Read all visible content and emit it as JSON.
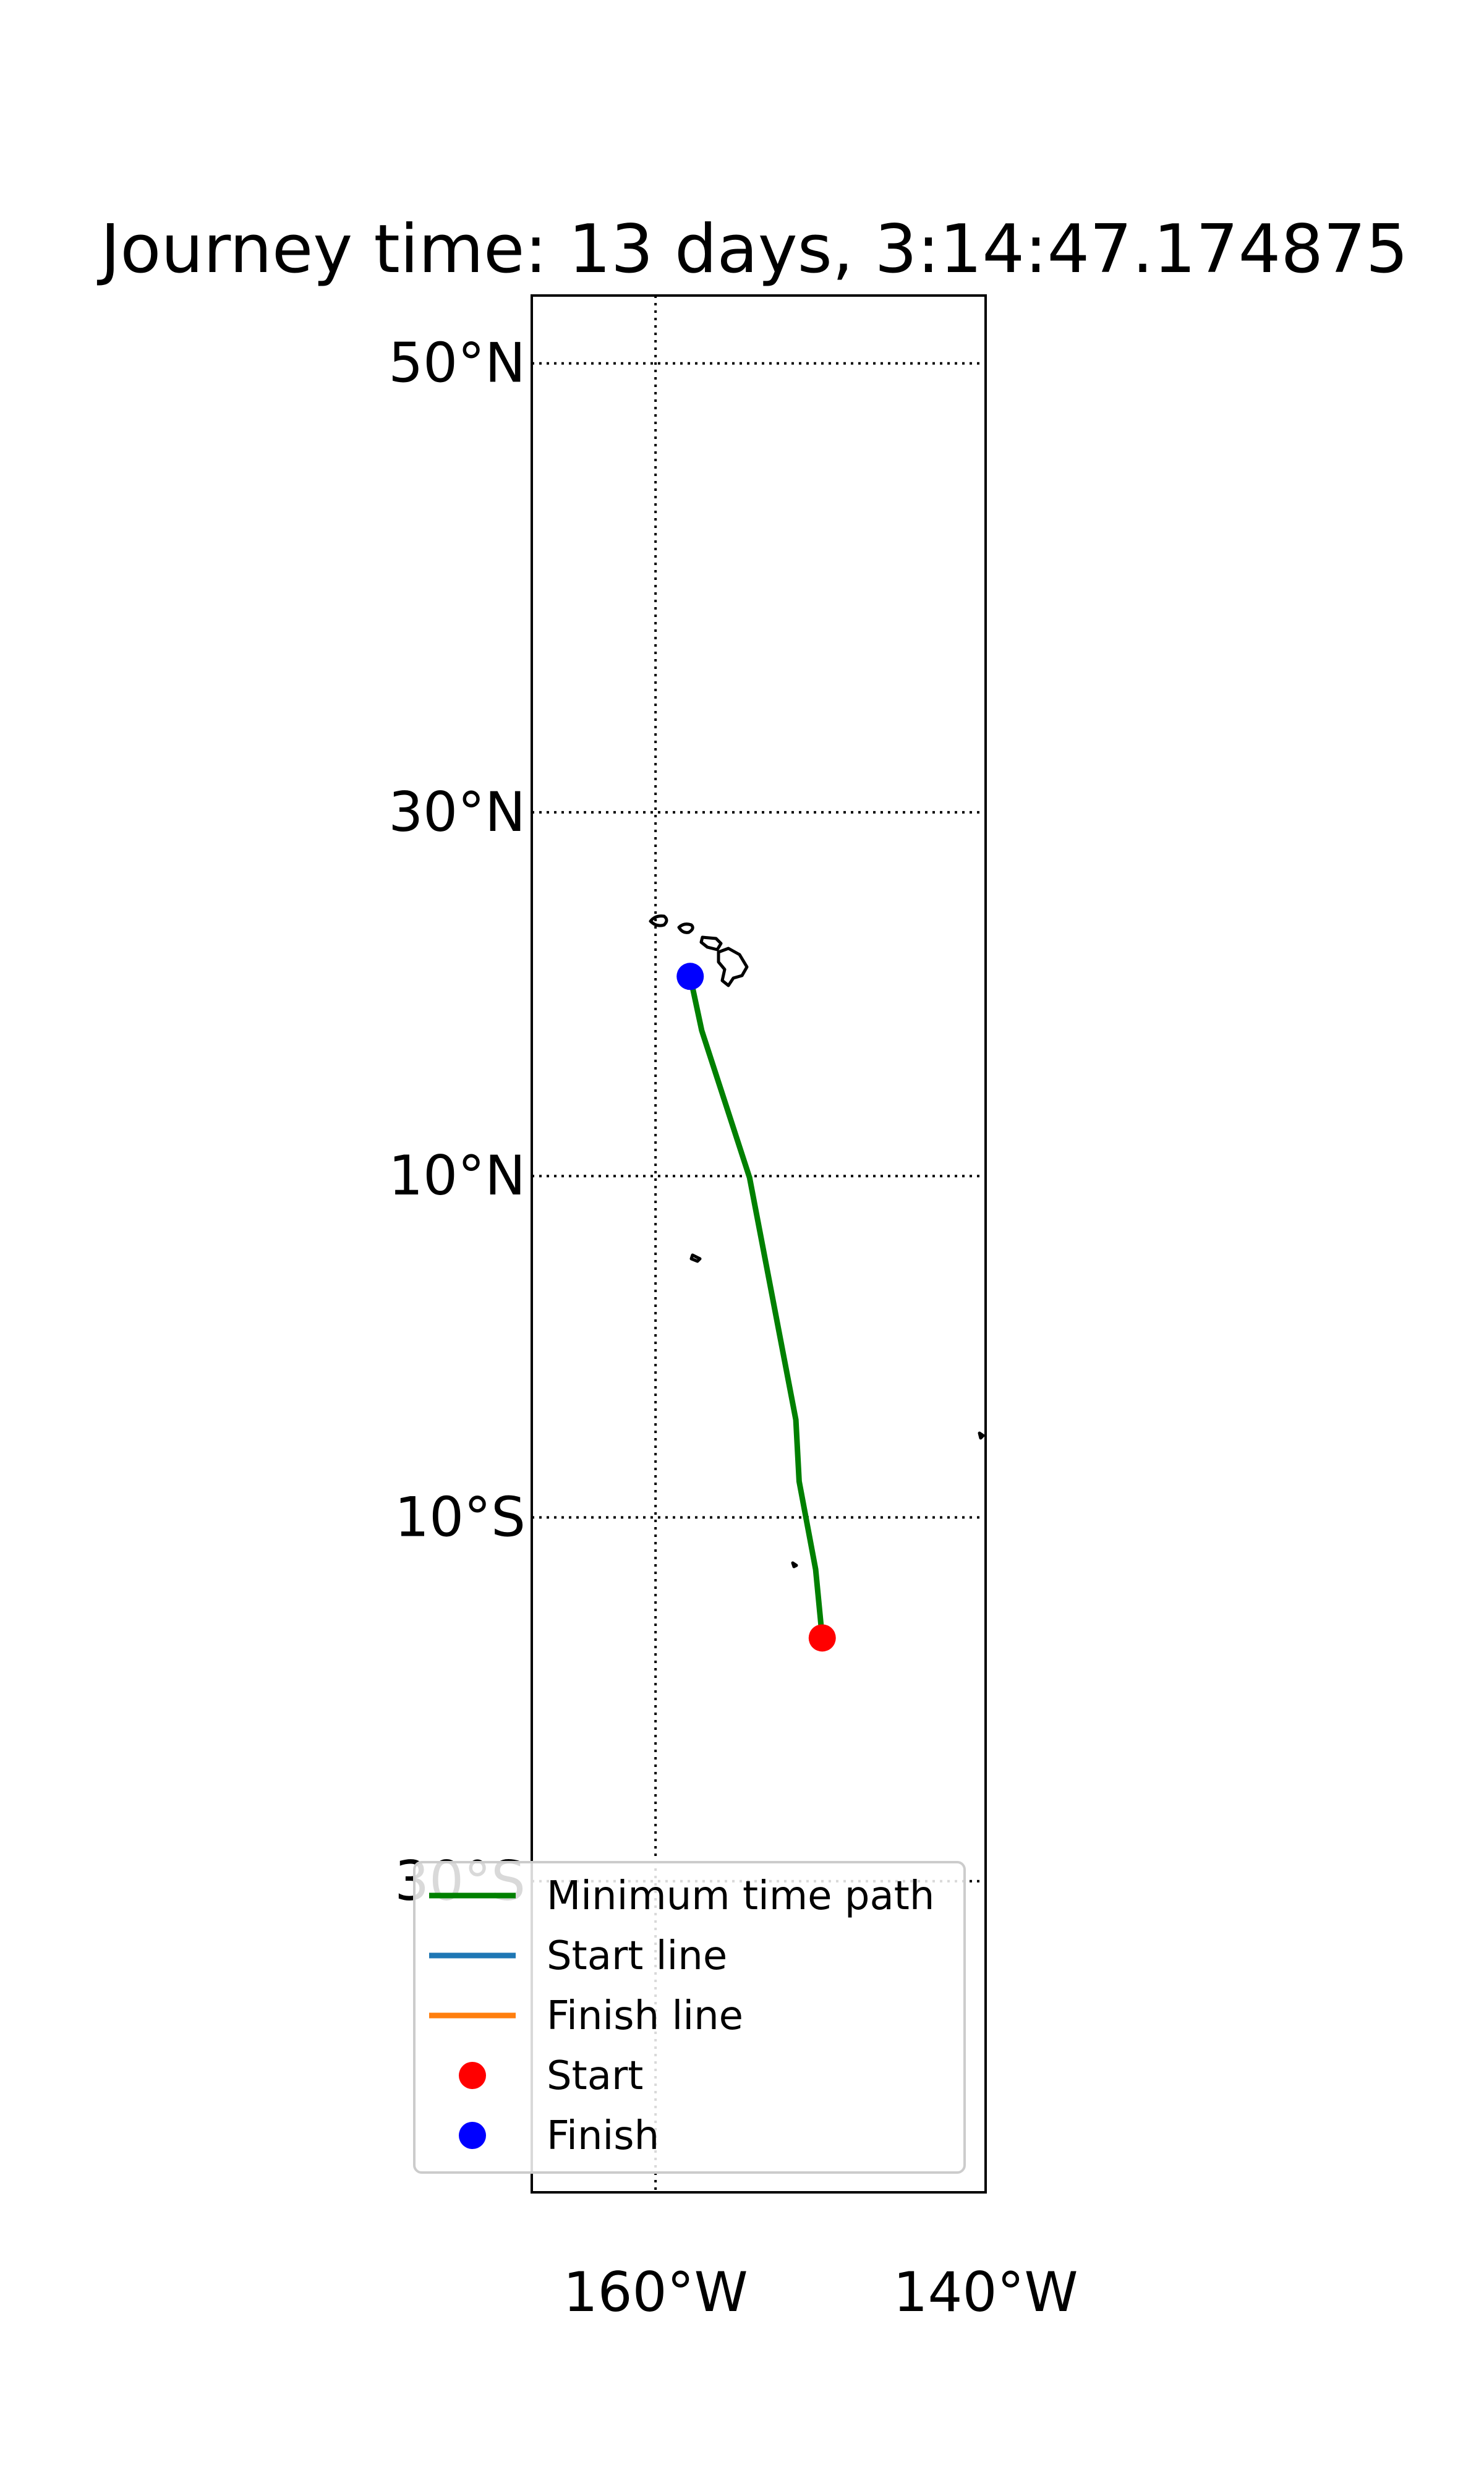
{
  "chart_data": {
    "type": "map",
    "title": "Journey time: 13 days, 3:14:47.174875",
    "projection": "mercator",
    "lon_range": [
      -167.5,
      -140.0
    ],
    "lat_range": [
      -44.5,
      52.5
    ],
    "lat_ticks": [
      {
        "value": 50,
        "label": "50°N"
      },
      {
        "value": 30,
        "label": "30°N"
      },
      {
        "value": 10,
        "label": "10°N"
      },
      {
        "value": -10,
        "label": "10°S"
      },
      {
        "value": -30,
        "label": "30°S"
      }
    ],
    "lon_ticks": [
      {
        "value": -160,
        "label": "160°W"
      },
      {
        "value": -140,
        "label": "140°W"
      }
    ],
    "grid": true,
    "series": [
      {
        "name": "Minimum time path",
        "color": "#008000",
        "points": [
          {
            "lon": -157.9,
            "lat": 21.3
          },
          {
            "lon": -157.2,
            "lat": 18.3
          },
          {
            "lon": -154.3,
            "lat": 9.9
          },
          {
            "lon": -151.5,
            "lat": -4.3
          },
          {
            "lon": -151.3,
            "lat": -7.9
          },
          {
            "lon": -150.3,
            "lat": -13.0
          },
          {
            "lon": -149.9,
            "lat": -16.9
          }
        ]
      },
      {
        "name": "Start line",
        "color": "#1f77b4",
        "points": []
      },
      {
        "name": "Finish line",
        "color": "#ff7f0e",
        "points": []
      }
    ],
    "markers": [
      {
        "name": "Start",
        "color": "#ff0000",
        "lon": -149.9,
        "lat": -16.9
      },
      {
        "name": "Finish",
        "color": "#0000ff",
        "lon": -157.9,
        "lat": 21.3
      }
    ],
    "legend": {
      "position": "lower-center",
      "entries": [
        {
          "label": "Minimum time path",
          "kind": "line",
          "color": "#008000"
        },
        {
          "label": "Start line",
          "kind": "line",
          "color": "#1f77b4"
        },
        {
          "label": "Finish line",
          "kind": "line",
          "color": "#ff7f0e"
        },
        {
          "label": "Start",
          "kind": "dot",
          "color": "#ff0000"
        },
        {
          "label": "Finish",
          "kind": "dot",
          "color": "#0000ff"
        }
      ]
    }
  }
}
